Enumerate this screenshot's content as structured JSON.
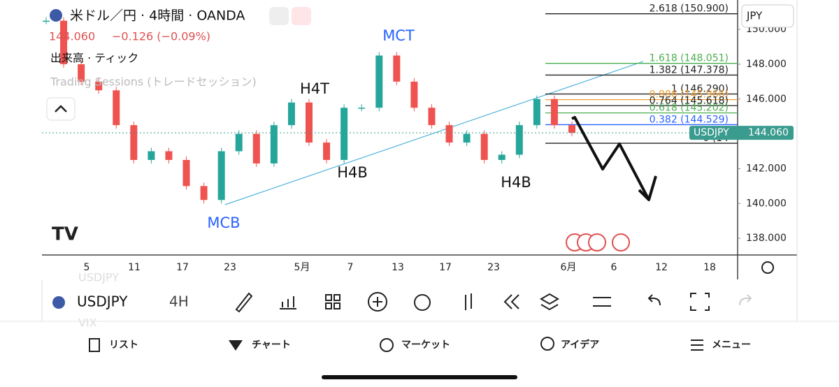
{
  "header": {
    "symbol_title": "米ドル／円 · 4時間 · OANDA",
    "quote": "144.060",
    "change": "−0.126 (−0.09%)",
    "volume_label": "出来高 · ティック",
    "sessions_label": "Trading Sessions (トレードセッション)",
    "currency": "JPY"
  },
  "chart_data": {
    "type": "candlestick",
    "closes": [
      150.5,
      148,
      147,
      146.5,
      144.5,
      142.5,
      143,
      142.5,
      141,
      140.2,
      143,
      144,
      142.3,
      144.5,
      145.8,
      143.5,
      142.5,
      145.5,
      145.5,
      148.5,
      147,
      145.5,
      144.5,
      143.5,
      144,
      142.5,
      142.8,
      144.5,
      146,
      144.5,
      144.06
    ],
    "ylim": [
      137.04,
      151.69
    ],
    "yticks": [
      {
        "value": 138,
        "label": "138.000"
      },
      {
        "value": 140,
        "label": "140.000"
      },
      {
        "value": 142,
        "label": "142.000"
      },
      {
        "value": 144,
        "label": "144.000"
      },
      {
        "value": 146,
        "label": "146.000"
      },
      {
        "value": 148,
        "label": "148.000"
      },
      {
        "value": 150,
        "label": "150.000"
      }
    ],
    "xticks": [
      "5",
      "11",
      "17",
      "23",
      "5月",
      "7",
      "13",
      "17",
      "23",
      "6月",
      "6",
      "12",
      "18"
    ],
    "last_price": {
      "symbol": "USDJPY",
      "value": 144.06,
      "label": "144.060"
    },
    "fib_levels": [
      {
        "value": 150.9,
        "label": "2.618 (150.900)",
        "color": "#222222"
      },
      {
        "value": 148.051,
        "label": "1.618 (148.051)",
        "color": "#4caf50"
      },
      {
        "value": 147.378,
        "label": "1.382 (147.378)",
        "color": "#222222"
      },
      {
        "value": 146.29,
        "label": "1 (146.290)",
        "color": "#222222"
      },
      {
        "value": 145.966,
        "label": "0.886 (145.966)",
        "color": "#f0a030"
      },
      {
        "value": 145.618,
        "label": "0.764 (145.618)",
        "color": "#222222"
      },
      {
        "value": 145.202,
        "label": "0.618 (145.202)",
        "color": "#4caf50"
      },
      {
        "value": 144.529,
        "label": "0.382 (144.529)",
        "color": "#2962ff"
      },
      {
        "value": 143.46,
        "label": "0 (14",
        "color": "#222222"
      }
    ],
    "trendline": [
      139.93,
      148.16
    ],
    "annotations": [
      "MCT",
      "H4T",
      "H4B",
      "H4B",
      "MCB"
    ]
  },
  "toolbar": {
    "symbol": "USDJPY",
    "interval": "4H"
  },
  "nav": [
    "リスト",
    "チャート",
    "マーケット",
    "アイデア",
    "メニュー"
  ],
  "ghost": [
    "USDJPY",
    "VIX"
  ]
}
